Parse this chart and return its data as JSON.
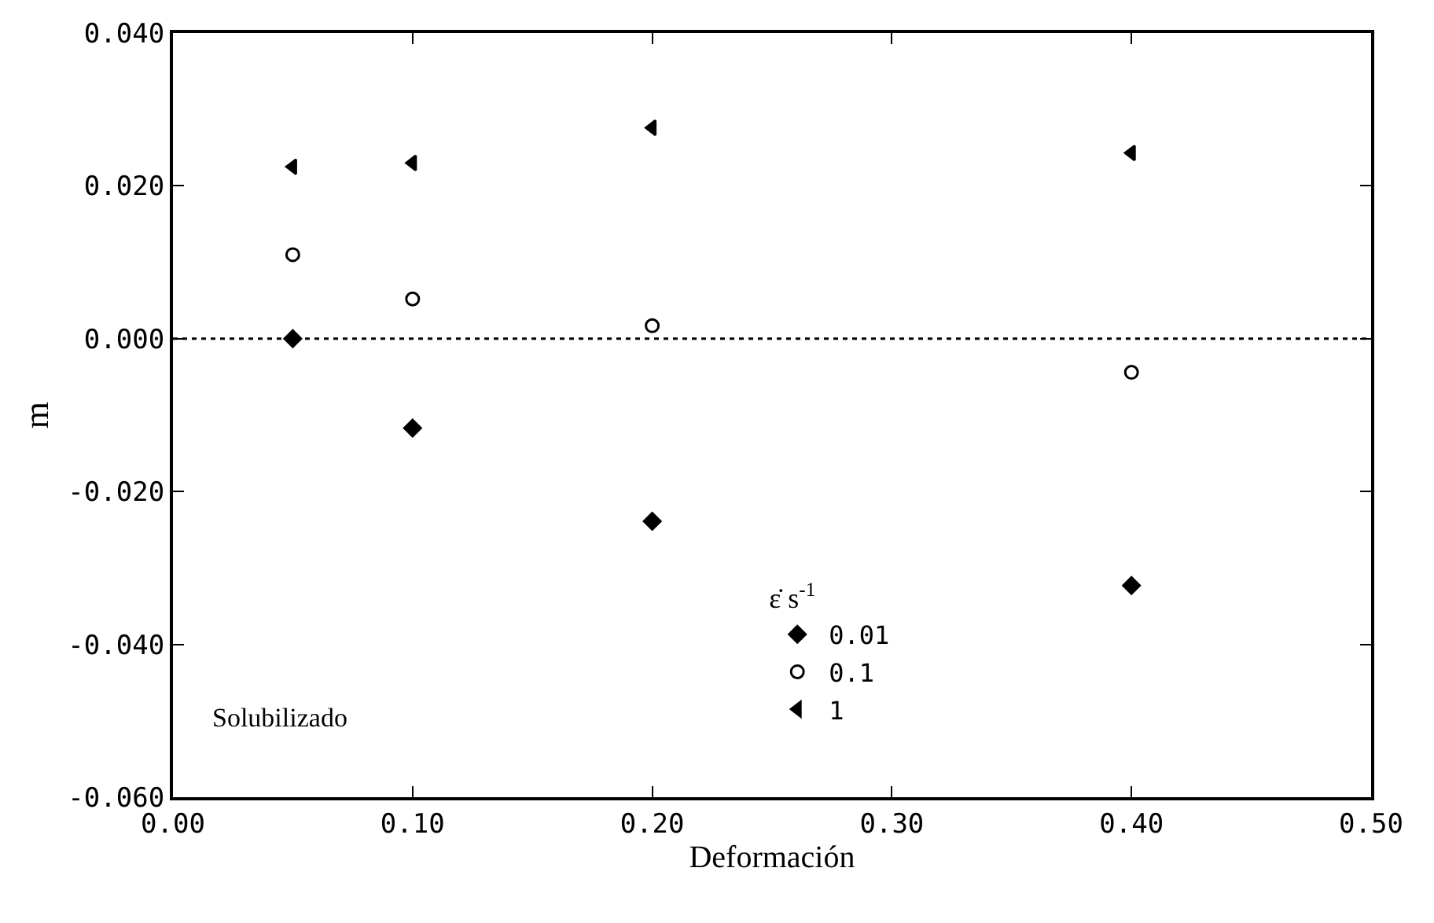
{
  "chart_data": {
    "type": "scatter",
    "xlabel": "Deformación",
    "ylabel": "m",
    "legend_title": "ε̇ s$^{-1}$",
    "x": [
      0.05,
      0.1,
      0.2,
      0.4
    ],
    "series": [
      {
        "name": "0.01",
        "color": "#000000",
        "marker": "diamond",
        "values": [
          0.0,
          -0.0117,
          -0.0239,
          -0.0323
        ]
      },
      {
        "name": "0.1",
        "color": "#000000",
        "marker": "circle",
        "values": [
          0.011,
          0.0052,
          0.0017,
          -0.0044
        ]
      },
      {
        "name": "1",
        "color": "#000000",
        "marker": "triangle",
        "values": [
          0.0225,
          0.023,
          0.0276,
          0.0243
        ]
      }
    ],
    "xlim": [
      0.0,
      0.5
    ],
    "xticks": [
      {
        "value": 0.0,
        "label": "0.00"
      },
      {
        "value": 0.1,
        "label": "0.10"
      },
      {
        "value": 0.2,
        "label": "0.20"
      },
      {
        "value": 0.3,
        "label": "0.30"
      },
      {
        "value": 0.4,
        "label": "0.40"
      },
      {
        "value": 0.5,
        "label": "0.50"
      }
    ],
    "ylim": [
      -0.06,
      0.04
    ],
    "yticks": [
      {
        "value": -0.06,
        "label": "-0.060"
      },
      {
        "value": -0.04,
        "label": "-0.040"
      },
      {
        "value": -0.02,
        "label": "-0.020"
      },
      {
        "value": 0.0,
        "label": "0.000"
      },
      {
        "value": 0.02,
        "label": "0.020"
      },
      {
        "value": 0.04,
        "label": "0.040"
      }
    ],
    "ref_lines": [
      {
        "axis": "y",
        "value": 0.0,
        "line_style": "dotted",
        "color": "#000000"
      }
    ],
    "annotations": [
      "Solubilizado"
    ],
    "legend": "bottom center",
    "grid": false
  }
}
